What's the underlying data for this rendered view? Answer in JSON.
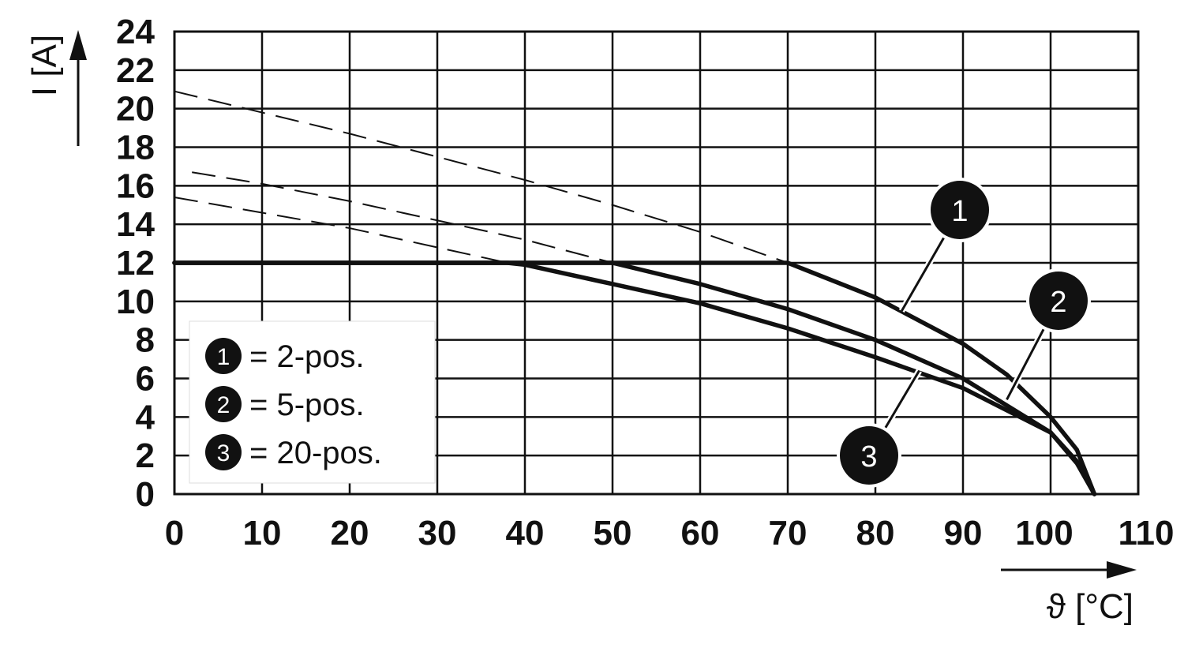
{
  "chart_data": {
    "type": "line",
    "xlabel": "ϑ [°C]",
    "ylabel": "I [A]",
    "xlim": [
      0,
      110
    ],
    "ylim": [
      0,
      24
    ],
    "x_ticks": [
      "0",
      "10",
      "20",
      "30",
      "40",
      "50",
      "60",
      "70",
      "80",
      "90",
      "100",
      "110"
    ],
    "y_ticks": [
      "0",
      "2",
      "4",
      "6",
      "8",
      "10",
      "12",
      "14",
      "16",
      "18",
      "20",
      "22",
      "24"
    ],
    "grid": true,
    "legend_position": "bottom-left",
    "series": [
      {
        "name": "2-pos.",
        "marker": "1",
        "values": [
          [
            0,
            12
          ],
          [
            70,
            12
          ],
          [
            80,
            10.2
          ],
          [
            90,
            7.8
          ],
          [
            95,
            6.2
          ],
          [
            100,
            4.0
          ],
          [
            103,
            2.3
          ],
          [
            105,
            0
          ]
        ],
        "extrapolation": [
          [
            0,
            20.9
          ],
          [
            10,
            19.8
          ],
          [
            20,
            18.7
          ],
          [
            30,
            17.5
          ],
          [
            40,
            16.3
          ],
          [
            50,
            15.0
          ],
          [
            60,
            13.6
          ],
          [
            70,
            12
          ]
        ]
      },
      {
        "name": "5-pos.",
        "marker": "2",
        "values": [
          [
            0,
            12
          ],
          [
            50,
            12
          ],
          [
            60,
            10.9
          ],
          [
            70,
            9.6
          ],
          [
            80,
            8.0
          ],
          [
            90,
            6.0
          ],
          [
            100,
            3.2
          ],
          [
            103,
            1.6
          ],
          [
            105,
            0
          ]
        ],
        "extrapolation": [
          [
            2,
            16.7
          ],
          [
            10,
            16.1
          ],
          [
            20,
            15.2
          ],
          [
            30,
            14.2
          ],
          [
            40,
            13.2
          ],
          [
            50,
            12
          ]
        ]
      },
      {
        "name": "20-pos.",
        "marker": "3",
        "values": [
          [
            0,
            12
          ],
          [
            38,
            12
          ],
          [
            40,
            11.9
          ],
          [
            50,
            10.9
          ],
          [
            60,
            9.9
          ],
          [
            70,
            8.6
          ],
          [
            80,
            7.1
          ],
          [
            90,
            5.5
          ],
          [
            100,
            3.2
          ],
          [
            103,
            1.7
          ],
          [
            105,
            0
          ]
        ],
        "extrapolation": [
          [
            0,
            15.4
          ],
          [
            10,
            14.6
          ],
          [
            20,
            13.8
          ],
          [
            30,
            12.8
          ],
          [
            38,
            12
          ]
        ]
      }
    ],
    "legend": [
      {
        "marker": "1",
        "text": "= 2-pos."
      },
      {
        "marker": "2",
        "text": "= 5-pos."
      },
      {
        "marker": "3",
        "text": "= 20-pos."
      }
    ],
    "callouts": [
      {
        "marker": "1",
        "at": [
          83,
          9.5
        ]
      },
      {
        "marker": "2",
        "at": [
          95,
          4.9
        ]
      },
      {
        "marker": "3",
        "at": [
          85,
          6.4
        ]
      }
    ]
  }
}
